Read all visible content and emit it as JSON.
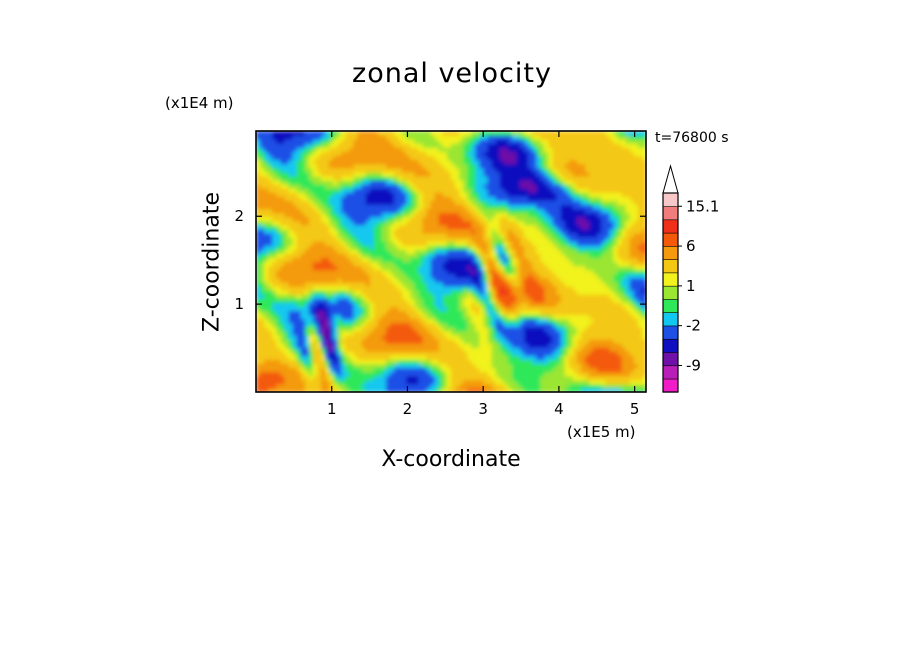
{
  "chart_data": {
    "type": "heatmap",
    "title": "zonal velocity",
    "xlabel": "X-coordinate",
    "ylabel": "Z-coordinate",
    "x_unit_label": "(x1E5 m)",
    "y_unit_label": "(x1E4 m)",
    "annotation": "t=76800 s",
    "xlim": [
      0,
      5.15
    ],
    "ylim": [
      0,
      2.97
    ],
    "x_ticks": [
      1,
      2,
      3,
      4,
      5
    ],
    "y_ticks": [
      1,
      2
    ],
    "colorbar": {
      "levels": [
        -15.1,
        -12,
        -9,
        -6,
        -4,
        -2,
        -1,
        0,
        1,
        2,
        4,
        6,
        9,
        12,
        15.1
      ],
      "labels": [
        "15.1",
        "6",
        "1",
        "-2",
        "-9"
      ],
      "label_values": [
        15.1,
        6,
        1,
        -2,
        -9
      ],
      "colors": [
        "#f01cc8",
        "#b81fb8",
        "#6f10a8",
        "#1010c0",
        "#1e50e6",
        "#12c8f0",
        "#2ee85a",
        "#9ae632",
        "#f2f21e",
        "#f4c812",
        "#f49a0c",
        "#f45a08",
        "#f03018",
        "#f07c7c",
        "#f8c8c8"
      ],
      "extend_max": true
    }
  }
}
